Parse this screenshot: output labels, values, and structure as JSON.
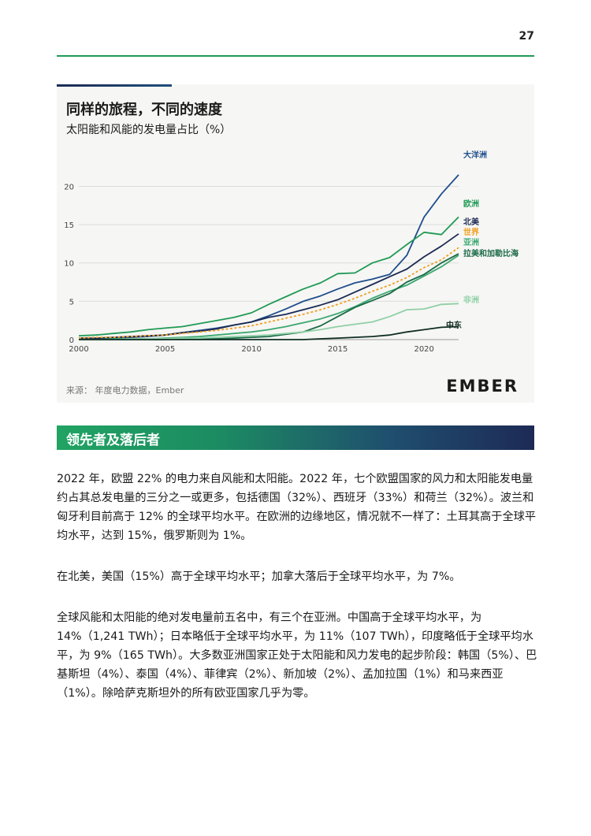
{
  "page": {
    "number": "27"
  },
  "chart": {
    "title": "同样的旅程，不同的速度",
    "subtitle": "太阳能和风能的发电量占比（%）",
    "source": "来源：  年度电力数据，Ember",
    "logo": "EMBER"
  },
  "chart_data": {
    "type": "line",
    "title": "同样的旅程，不同的速度",
    "subtitle": "太阳能和风能的发电量占比（%）",
    "xlim": [
      2000,
      2022
    ],
    "ylim": [
      0,
      22
    ],
    "x_ticks": [
      2000,
      2005,
      2010,
      2015,
      2020
    ],
    "y_ticks": [
      0,
      5,
      10,
      15,
      20
    ],
    "grid": "horizontal",
    "x": [
      2000,
      2001,
      2002,
      2003,
      2004,
      2005,
      2006,
      2007,
      2008,
      2009,
      2010,
      2011,
      2012,
      2013,
      2014,
      2015,
      2016,
      2017,
      2018,
      2019,
      2020,
      2021,
      2022
    ],
    "series": [
      {
        "name": "大洋洲",
        "color": "#1f4e8c",
        "dashed": false,
        "values": [
          0.1,
          0.1,
          0.2,
          0.3,
          0.4,
          0.6,
          0.9,
          1.2,
          1.5,
          1.9,
          2.3,
          3.1,
          4.0,
          5.0,
          5.7,
          6.6,
          7.4,
          7.9,
          8.5,
          11.0,
          16.0,
          19.0,
          21.5
        ]
      },
      {
        "name": "欧洲",
        "color": "#1f9a55",
        "dashed": false,
        "values": [
          0.5,
          0.6,
          0.8,
          1.0,
          1.3,
          1.5,
          1.7,
          2.1,
          2.5,
          2.9,
          3.5,
          4.6,
          5.6,
          6.6,
          7.4,
          8.6,
          8.7,
          10.0,
          10.7,
          12.4,
          14.0,
          13.7,
          16.0
        ]
      },
      {
        "name": "北美",
        "color": "#1c2a55",
        "dashed": false,
        "values": [
          0.2,
          0.2,
          0.3,
          0.4,
          0.5,
          0.6,
          0.9,
          1.1,
          1.4,
          1.9,
          2.3,
          2.9,
          3.3,
          3.9,
          4.5,
          5.2,
          6.2,
          7.2,
          8.2,
          9.2,
          10.8,
          12.2,
          13.8
        ]
      },
      {
        "name": "世界",
        "color": "#f0a020",
        "dashed": true,
        "values": [
          0.2,
          0.3,
          0.3,
          0.4,
          0.5,
          0.6,
          0.8,
          1.0,
          1.2,
          1.5,
          1.8,
          2.3,
          2.8,
          3.3,
          3.9,
          4.6,
          5.4,
          6.3,
          7.1,
          8.1,
          9.4,
          10.4,
          12.0
        ]
      },
      {
        "name": "亚洲",
        "color": "#3aa870",
        "dashed": false,
        "values": [
          0.0,
          0.0,
          0.1,
          0.1,
          0.1,
          0.2,
          0.3,
          0.4,
          0.6,
          0.8,
          1.0,
          1.3,
          1.7,
          2.2,
          2.7,
          3.4,
          4.3,
          5.4,
          6.3,
          7.1,
          8.3,
          9.5,
          11.0
        ]
      },
      {
        "name": "拉美和加勒比海",
        "color": "#1a6a45",
        "dashed": false,
        "values": [
          0.0,
          0.0,
          0.0,
          0.0,
          0.0,
          0.0,
          0.1,
          0.1,
          0.1,
          0.2,
          0.3,
          0.4,
          0.7,
          1.0,
          1.8,
          3.0,
          4.2,
          5.1,
          6.0,
          7.5,
          8.5,
          10.0,
          11.2
        ]
      },
      {
        "name": "非洲",
        "color": "#8fd0a6",
        "dashed": false,
        "values": [
          0.0,
          0.0,
          0.0,
          0.1,
          0.1,
          0.1,
          0.2,
          0.2,
          0.3,
          0.4,
          0.5,
          0.6,
          0.8,
          1.0,
          1.3,
          1.7,
          2.0,
          2.3,
          3.0,
          3.9,
          4.0,
          4.6,
          4.7
        ]
      },
      {
        "name": "中东",
        "color": "#0f2e24",
        "dashed": false,
        "values": [
          0.0,
          0.0,
          0.0,
          0.0,
          0.0,
          0.0,
          0.0,
          0.0,
          0.0,
          0.0,
          0.0,
          0.0,
          0.0,
          0.0,
          0.1,
          0.2,
          0.3,
          0.4,
          0.6,
          1.0,
          1.3,
          1.6,
          1.7
        ]
      }
    ]
  },
  "section": {
    "heading": "领先者及落后者"
  },
  "body": {
    "p1": "2022 年，欧盟 22% 的电力来自风能和太阳能。2022 年，七个欧盟国家的风力和太阳能发电量约占其总发电量的三分之一或更多，包括德国（32%）、西班牙（33%）和荷兰（32%）。波兰和匈牙利目前高于 12% 的全球平均水平。在欧洲的边缘地区，情况就不一样了：土耳其高于全球平均水平，达到 15%，俄罗斯则为 1%。",
    "p2": "在北美，美国（15%）高于全球平均水平；加拿大落后于全球平均水平，为 7%。",
    "p3": "全球风能和太阳能的绝对发电量前五名中，有三个在亚洲。中国高于全球平均水平，为 14%（1,241 TWh）；日本略低于全球平均水平，为 11%（107 TWh），印度略低于全球平均水平，为 9%（165 TWh）。大多数亚洲国家正处于太阳能和风力发电的起步阶段：韩国（5%）、巴基斯坦（4%）、泰国（4%）、菲律宾（2%）、新加坡（2%）、孟加拉国（1%）和马来西亚（1%）。除哈萨克斯坦外的所有欧亚国家几乎为零。"
  }
}
